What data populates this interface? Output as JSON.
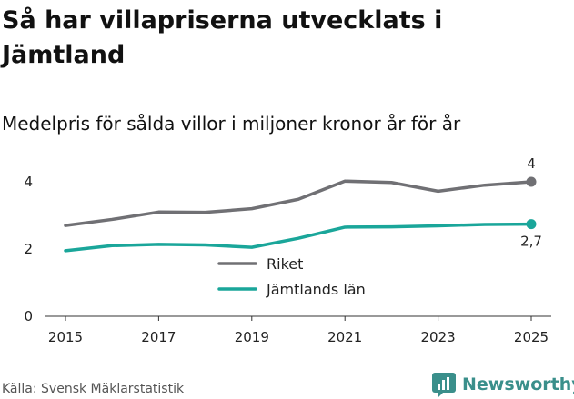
{
  "title": "Så har villapriserna utvecklats i Jämtland",
  "subtitle": "Medelpris för sålda villor i miljoner kronor år för år",
  "source": "Källa: Svensk Mäklarstatistik",
  "brand": "Newsworthy",
  "chart_data": {
    "type": "line",
    "title": "Så har villapriserna utvecklats i Jämtland",
    "subtitle": "Medelpris för sålda villor i miljoner kronor år för år",
    "xlabel": "",
    "ylabel": "",
    "x": [
      2015,
      2016,
      2017,
      2018,
      2019,
      2020,
      2021,
      2022,
      2023,
      2024,
      2025
    ],
    "xticks": [
      "2015",
      "2017",
      "2019",
      "2021",
      "2023",
      "2025"
    ],
    "yticks": [
      "0",
      "2",
      "4"
    ],
    "xlim": [
      2015,
      2025
    ],
    "ylim": [
      0,
      4
    ],
    "grid": false,
    "legend": "center",
    "series": [
      {
        "name": "Riket",
        "color": "#707074",
        "values": [
          2.7,
          2.88,
          3.1,
          3.09,
          3.2,
          3.48,
          4.02,
          3.98,
          3.72,
          3.9,
          4.0
        ],
        "end_label": "4"
      },
      {
        "name": "Jämtlands län",
        "color": "#1aa69a",
        "values": [
          1.95,
          2.1,
          2.14,
          2.12,
          2.05,
          2.32,
          2.65,
          2.66,
          2.69,
          2.73,
          2.74
        ],
        "end_label": "2,7"
      }
    ]
  }
}
